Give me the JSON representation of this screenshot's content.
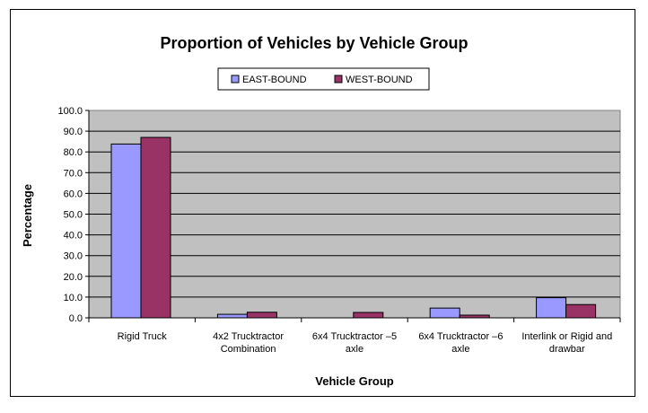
{
  "chart_data": {
    "type": "bar",
    "title": "Proportion of Vehicles by Vehicle Group",
    "xlabel": "Vehicle Group",
    "ylabel": "Percentage",
    "ylim": [
      0,
      100
    ],
    "yticks": [
      "0.0",
      "10.0",
      "20.0",
      "30.0",
      "40.0",
      "50.0",
      "60.0",
      "70.0",
      "80.0",
      "90.0",
      "100.0"
    ],
    "grid": true,
    "legend_position": "top-center",
    "categories": [
      [
        "Rigid Truck"
      ],
      [
        "4x2 Trucktractor",
        "Combination"
      ],
      [
        "6x4 Trucktractor –5",
        "axle"
      ],
      [
        "6x4 Trucktractor –6",
        "axle"
      ],
      [
        "Interlink or Rigid and",
        "drawbar"
      ]
    ],
    "series": [
      {
        "name": "EAST-BOUND",
        "color": "#9999FF",
        "values": [
          83.8,
          1.7,
          0.0,
          4.7,
          9.7
        ]
      },
      {
        "name": "WEST-BOUND",
        "color": "#993366",
        "values": [
          87.0,
          2.7,
          2.6,
          1.3,
          6.4
        ]
      }
    ],
    "plot_background": "#C0C0C0"
  }
}
